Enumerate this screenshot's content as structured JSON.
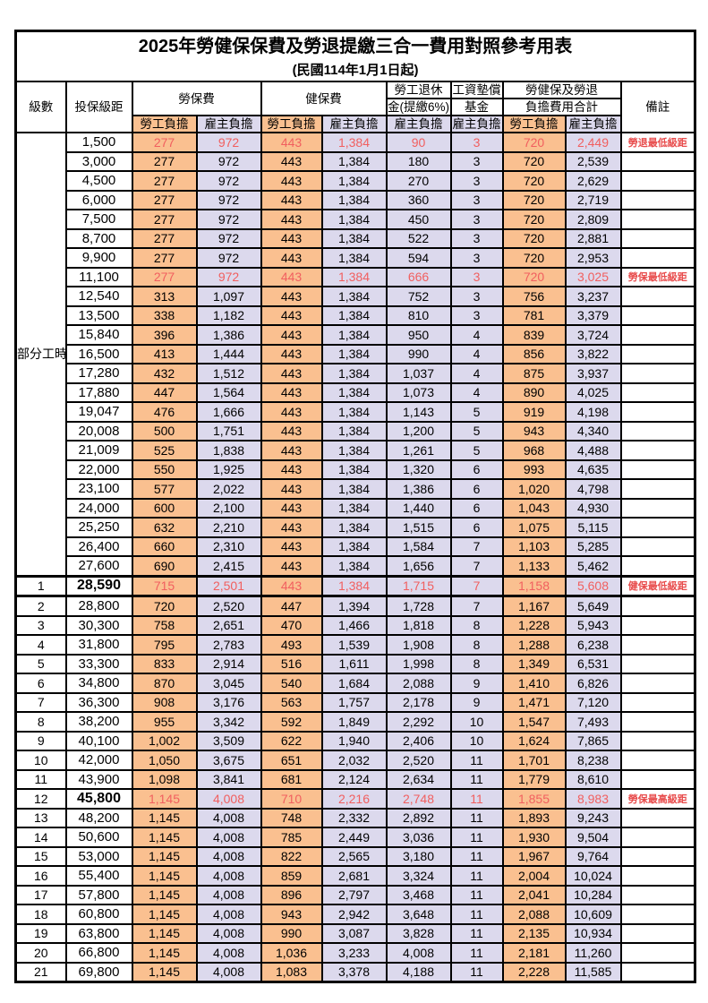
{
  "title": "2025年勞健保保費及勞退提繳三合一費用對照參考用表",
  "subtitle": "(民國114年1月1日起)",
  "colors": {
    "employee_column_bg": "#FAC090",
    "employer_column_bg": "#DCD9ED",
    "highlight_text": "#F15F5F",
    "note_text": "#E84C4C",
    "border": "#000000"
  },
  "header": {
    "level": "級數",
    "bracket": "投保級距",
    "labor": "勞保費",
    "health": "健保費",
    "pension_line1": "勞工退休",
    "pension_line2": "金(提繳6%)",
    "fund_line1": "工資墊償",
    "fund_line2": "基金",
    "total_line1": "勞健保及勞退",
    "total_line2": "負擔費用合計",
    "note": "備註",
    "employee": "勞工負擔",
    "employer": "雇主負擔"
  },
  "part_time_label": "部分工時",
  "rows": [
    {
      "level": "",
      "bracket": "1,500",
      "labor_emp": "277",
      "labor_er": "972",
      "health_emp": "443",
      "health_er": "1,384",
      "pension_er": "90",
      "fund_er": "3",
      "total_emp": "720",
      "total_er": "2,449",
      "note": "勞退最低級距",
      "red": true
    },
    {
      "level": "",
      "bracket": "3,000",
      "labor_emp": "277",
      "labor_er": "972",
      "health_emp": "443",
      "health_er": "1,384",
      "pension_er": "180",
      "fund_er": "3",
      "total_emp": "720",
      "total_er": "2,539",
      "note": ""
    },
    {
      "level": "",
      "bracket": "4,500",
      "labor_emp": "277",
      "labor_er": "972",
      "health_emp": "443",
      "health_er": "1,384",
      "pension_er": "270",
      "fund_er": "3",
      "total_emp": "720",
      "total_er": "2,629",
      "note": ""
    },
    {
      "level": "",
      "bracket": "6,000",
      "labor_emp": "277",
      "labor_er": "972",
      "health_emp": "443",
      "health_er": "1,384",
      "pension_er": "360",
      "fund_er": "3",
      "total_emp": "720",
      "total_er": "2,719",
      "note": ""
    },
    {
      "level": "",
      "bracket": "7,500",
      "labor_emp": "277",
      "labor_er": "972",
      "health_emp": "443",
      "health_er": "1,384",
      "pension_er": "450",
      "fund_er": "3",
      "total_emp": "720",
      "total_er": "2,809",
      "note": ""
    },
    {
      "level": "",
      "bracket": "8,700",
      "labor_emp": "277",
      "labor_er": "972",
      "health_emp": "443",
      "health_er": "1,384",
      "pension_er": "522",
      "fund_er": "3",
      "total_emp": "720",
      "total_er": "2,881",
      "note": ""
    },
    {
      "level": "",
      "bracket": "9,900",
      "labor_emp": "277",
      "labor_er": "972",
      "health_emp": "443",
      "health_er": "1,384",
      "pension_er": "594",
      "fund_er": "3",
      "total_emp": "720",
      "total_er": "2,953",
      "note": ""
    },
    {
      "level": "",
      "bracket": "11,100",
      "labor_emp": "277",
      "labor_er": "972",
      "health_emp": "443",
      "health_er": "1,384",
      "pension_er": "666",
      "fund_er": "3",
      "total_emp": "720",
      "total_er": "3,025",
      "note": "勞保最低級距",
      "red": true
    },
    {
      "level": "",
      "bracket": "12,540",
      "labor_emp": "313",
      "labor_er": "1,097",
      "health_emp": "443",
      "health_er": "1,384",
      "pension_er": "752",
      "fund_er": "3",
      "total_emp": "756",
      "total_er": "3,237",
      "note": ""
    },
    {
      "level": "",
      "bracket": "13,500",
      "labor_emp": "338",
      "labor_er": "1,182",
      "health_emp": "443",
      "health_er": "1,384",
      "pension_er": "810",
      "fund_er": "3",
      "total_emp": "781",
      "total_er": "3,379",
      "note": ""
    },
    {
      "level": "",
      "bracket": "15,840",
      "labor_emp": "396",
      "labor_er": "1,386",
      "health_emp": "443",
      "health_er": "1,384",
      "pension_er": "950",
      "fund_er": "4",
      "total_emp": "839",
      "total_er": "3,724",
      "note": ""
    },
    {
      "level": "",
      "bracket": "16,500",
      "labor_emp": "413",
      "labor_er": "1,444",
      "health_emp": "443",
      "health_er": "1,384",
      "pension_er": "990",
      "fund_er": "4",
      "total_emp": "856",
      "total_er": "3,822",
      "note": ""
    },
    {
      "level": "",
      "bracket": "17,280",
      "labor_emp": "432",
      "labor_er": "1,512",
      "health_emp": "443",
      "health_er": "1,384",
      "pension_er": "1,037",
      "fund_er": "4",
      "total_emp": "875",
      "total_er": "3,937",
      "note": ""
    },
    {
      "level": "",
      "bracket": "17,880",
      "labor_emp": "447",
      "labor_er": "1,564",
      "health_emp": "443",
      "health_er": "1,384",
      "pension_er": "1,073",
      "fund_er": "4",
      "total_emp": "890",
      "total_er": "4,025",
      "note": ""
    },
    {
      "level": "",
      "bracket": "19,047",
      "labor_emp": "476",
      "labor_er": "1,666",
      "health_emp": "443",
      "health_er": "1,384",
      "pension_er": "1,143",
      "fund_er": "5",
      "total_emp": "919",
      "total_er": "4,198",
      "note": ""
    },
    {
      "level": "",
      "bracket": "20,008",
      "labor_emp": "500",
      "labor_er": "1,751",
      "health_emp": "443",
      "health_er": "1,384",
      "pension_er": "1,200",
      "fund_er": "5",
      "total_emp": "943",
      "total_er": "4,340",
      "note": ""
    },
    {
      "level": "",
      "bracket": "21,009",
      "labor_emp": "525",
      "labor_er": "1,838",
      "health_emp": "443",
      "health_er": "1,384",
      "pension_er": "1,261",
      "fund_er": "5",
      "total_emp": "968",
      "total_er": "4,488",
      "note": ""
    },
    {
      "level": "",
      "bracket": "22,000",
      "labor_emp": "550",
      "labor_er": "1,925",
      "health_emp": "443",
      "health_er": "1,384",
      "pension_er": "1,320",
      "fund_er": "6",
      "total_emp": "993",
      "total_er": "4,635",
      "note": ""
    },
    {
      "level": "",
      "bracket": "23,100",
      "labor_emp": "577",
      "labor_er": "2,022",
      "health_emp": "443",
      "health_er": "1,384",
      "pension_er": "1,386",
      "fund_er": "6",
      "total_emp": "1,020",
      "total_er": "4,798",
      "note": ""
    },
    {
      "level": "",
      "bracket": "24,000",
      "labor_emp": "600",
      "labor_er": "2,100",
      "health_emp": "443",
      "health_er": "1,384",
      "pension_er": "1,440",
      "fund_er": "6",
      "total_emp": "1,043",
      "total_er": "4,930",
      "note": ""
    },
    {
      "level": "",
      "bracket": "25,250",
      "labor_emp": "632",
      "labor_er": "2,210",
      "health_emp": "443",
      "health_er": "1,384",
      "pension_er": "1,515",
      "fund_er": "6",
      "total_emp": "1,075",
      "total_er": "5,115",
      "note": ""
    },
    {
      "level": "",
      "bracket": "26,400",
      "labor_emp": "660",
      "labor_er": "2,310",
      "health_emp": "443",
      "health_er": "1,384",
      "pension_er": "1,584",
      "fund_er": "7",
      "total_emp": "1,103",
      "total_er": "5,285",
      "note": ""
    },
    {
      "level": "",
      "bracket": "27,600",
      "labor_emp": "690",
      "labor_er": "2,415",
      "health_emp": "443",
      "health_er": "1,384",
      "pension_er": "1,656",
      "fund_er": "7",
      "total_emp": "1,133",
      "total_er": "5,462",
      "note": ""
    },
    {
      "level": "1",
      "bracket": "28,590",
      "labor_emp": "715",
      "labor_er": "2,501",
      "health_emp": "443",
      "health_er": "1,384",
      "pension_er": "1,715",
      "fund_er": "7",
      "total_emp": "1,158",
      "total_er": "5,608",
      "note": "健保最低級距",
      "red": true,
      "bold": true,
      "section": true
    },
    {
      "level": "2",
      "bracket": "28,800",
      "labor_emp": "720",
      "labor_er": "2,520",
      "health_emp": "447",
      "health_er": "1,394",
      "pension_er": "1,728",
      "fund_er": "7",
      "total_emp": "1,167",
      "total_er": "5,649",
      "note": ""
    },
    {
      "level": "3",
      "bracket": "30,300",
      "labor_emp": "758",
      "labor_er": "2,651",
      "health_emp": "470",
      "health_er": "1,466",
      "pension_er": "1,818",
      "fund_er": "8",
      "total_emp": "1,228",
      "total_er": "5,943",
      "note": ""
    },
    {
      "level": "4",
      "bracket": "31,800",
      "labor_emp": "795",
      "labor_er": "2,783",
      "health_emp": "493",
      "health_er": "1,539",
      "pension_er": "1,908",
      "fund_er": "8",
      "total_emp": "1,288",
      "total_er": "6,238",
      "note": ""
    },
    {
      "level": "5",
      "bracket": "33,300",
      "labor_emp": "833",
      "labor_er": "2,914",
      "health_emp": "516",
      "health_er": "1,611",
      "pension_er": "1,998",
      "fund_er": "8",
      "total_emp": "1,349",
      "total_er": "6,531",
      "note": ""
    },
    {
      "level": "6",
      "bracket": "34,800",
      "labor_emp": "870",
      "labor_er": "3,045",
      "health_emp": "540",
      "health_er": "1,684",
      "pension_er": "2,088",
      "fund_er": "9",
      "total_emp": "1,410",
      "total_er": "6,826",
      "note": ""
    },
    {
      "level": "7",
      "bracket": "36,300",
      "labor_emp": "908",
      "labor_er": "3,176",
      "health_emp": "563",
      "health_er": "1,757",
      "pension_er": "2,178",
      "fund_er": "9",
      "total_emp": "1,471",
      "total_er": "7,120",
      "note": ""
    },
    {
      "level": "8",
      "bracket": "38,200",
      "labor_emp": "955",
      "labor_er": "3,342",
      "health_emp": "592",
      "health_er": "1,849",
      "pension_er": "2,292",
      "fund_er": "10",
      "total_emp": "1,547",
      "total_er": "7,493",
      "note": ""
    },
    {
      "level": "9",
      "bracket": "40,100",
      "labor_emp": "1,002",
      "labor_er": "3,509",
      "health_emp": "622",
      "health_er": "1,940",
      "pension_er": "2,406",
      "fund_er": "10",
      "total_emp": "1,624",
      "total_er": "7,865",
      "note": ""
    },
    {
      "level": "10",
      "bracket": "42,000",
      "labor_emp": "1,050",
      "labor_er": "3,675",
      "health_emp": "651",
      "health_er": "2,032",
      "pension_er": "2,520",
      "fund_er": "11",
      "total_emp": "1,701",
      "total_er": "8,238",
      "note": ""
    },
    {
      "level": "11",
      "bracket": "43,900",
      "labor_emp": "1,098",
      "labor_er": "3,841",
      "health_emp": "681",
      "health_er": "2,124",
      "pension_er": "2,634",
      "fund_er": "11",
      "total_emp": "1,779",
      "total_er": "8,610",
      "note": ""
    },
    {
      "level": "12",
      "bracket": "45,800",
      "labor_emp": "1,145",
      "labor_er": "4,008",
      "health_emp": "710",
      "health_er": "2,216",
      "pension_er": "2,748",
      "fund_er": "11",
      "total_emp": "1,855",
      "total_er": "8,983",
      "note": "勞保最高級距",
      "red": true,
      "bold": true
    },
    {
      "level": "13",
      "bracket": "48,200",
      "labor_emp": "1,145",
      "labor_er": "4,008",
      "health_emp": "748",
      "health_er": "2,332",
      "pension_er": "2,892",
      "fund_er": "11",
      "total_emp": "1,893",
      "total_er": "9,243",
      "note": ""
    },
    {
      "level": "14",
      "bracket": "50,600",
      "labor_emp": "1,145",
      "labor_er": "4,008",
      "health_emp": "785",
      "health_er": "2,449",
      "pension_er": "3,036",
      "fund_er": "11",
      "total_emp": "1,930",
      "total_er": "9,504",
      "note": ""
    },
    {
      "level": "15",
      "bracket": "53,000",
      "labor_emp": "1,145",
      "labor_er": "4,008",
      "health_emp": "822",
      "health_er": "2,565",
      "pension_er": "3,180",
      "fund_er": "11",
      "total_emp": "1,967",
      "total_er": "9,764",
      "note": ""
    },
    {
      "level": "16",
      "bracket": "55,400",
      "labor_emp": "1,145",
      "labor_er": "4,008",
      "health_emp": "859",
      "health_er": "2,681",
      "pension_er": "3,324",
      "fund_er": "11",
      "total_emp": "2,004",
      "total_er": "10,024",
      "note": ""
    },
    {
      "level": "17",
      "bracket": "57,800",
      "labor_emp": "1,145",
      "labor_er": "4,008",
      "health_emp": "896",
      "health_er": "2,797",
      "pension_er": "3,468",
      "fund_er": "11",
      "total_emp": "2,041",
      "total_er": "10,284",
      "note": ""
    },
    {
      "level": "18",
      "bracket": "60,800",
      "labor_emp": "1,145",
      "labor_er": "4,008",
      "health_emp": "943",
      "health_er": "2,942",
      "pension_er": "3,648",
      "fund_er": "11",
      "total_emp": "2,088",
      "total_er": "10,609",
      "note": ""
    },
    {
      "level": "19",
      "bracket": "63,800",
      "labor_emp": "1,145",
      "labor_er": "4,008",
      "health_emp": "990",
      "health_er": "3,087",
      "pension_er": "3,828",
      "fund_er": "11",
      "total_emp": "2,135",
      "total_er": "10,934",
      "note": ""
    },
    {
      "level": "20",
      "bracket": "66,800",
      "labor_emp": "1,145",
      "labor_er": "4,008",
      "health_emp": "1,036",
      "health_er": "3,233",
      "pension_er": "4,008",
      "fund_er": "11",
      "total_emp": "2,181",
      "total_er": "11,260",
      "note": ""
    },
    {
      "level": "21",
      "bracket": "69,800",
      "labor_emp": "1,145",
      "labor_er": "4,008",
      "health_emp": "1,083",
      "health_er": "3,378",
      "pension_er": "4,188",
      "fund_er": "11",
      "total_emp": "2,228",
      "total_er": "11,585",
      "note": ""
    }
  ]
}
